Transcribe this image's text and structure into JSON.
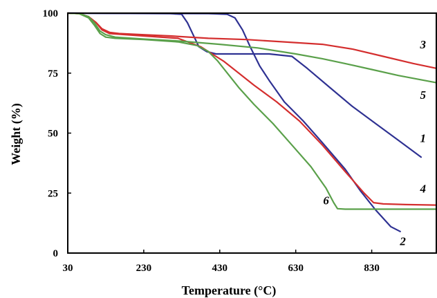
{
  "chart_data": {
    "type": "line",
    "title": "",
    "xlabel": "Temperature (°C)",
    "ylabel": "Weight (%)",
    "xlim": [
      30,
      1000
    ],
    "ylim": [
      0,
      100
    ],
    "x_ticks": [
      "30",
      "230",
      "430",
      "630",
      "830"
    ],
    "y_ticks": [
      "0",
      "25",
      "50",
      "75",
      "100"
    ],
    "grid": false,
    "legend": "none",
    "series": [
      {
        "name": "1",
        "color": "#2e3192",
        "points": [
          [
            30,
            100
          ],
          [
            300,
            99.8
          ],
          [
            330,
            99.5
          ],
          [
            345,
            96
          ],
          [
            360,
            91
          ],
          [
            375,
            86
          ],
          [
            395,
            84
          ],
          [
            420,
            83
          ],
          [
            560,
            83
          ],
          [
            620,
            82
          ],
          [
            660,
            77
          ],
          [
            720,
            69
          ],
          [
            780,
            61
          ],
          [
            840,
            54
          ],
          [
            900,
            47
          ],
          [
            960,
            40
          ]
        ]
      },
      {
        "name": "2",
        "color": "#2e3192",
        "points": [
          [
            30,
            100
          ],
          [
            400,
            99.8
          ],
          [
            450,
            99.5
          ],
          [
            470,
            98
          ],
          [
            490,
            93
          ],
          [
            510,
            86
          ],
          [
            535,
            78
          ],
          [
            560,
            72
          ],
          [
            600,
            63
          ],
          [
            650,
            55
          ],
          [
            700,
            46
          ],
          [
            760,
            35
          ],
          [
            800,
            26
          ],
          [
            840,
            18
          ],
          [
            880,
            11
          ],
          [
            905,
            9
          ]
        ]
      },
      {
        "name": "3",
        "color": "#d42e2e",
        "points": [
          [
            30,
            100
          ],
          [
            60,
            99.8
          ],
          [
            85,
            98.5
          ],
          [
            105,
            96
          ],
          [
            120,
            93.5
          ],
          [
            140,
            92
          ],
          [
            165,
            91.5
          ],
          [
            230,
            91
          ],
          [
            300,
            90.5
          ],
          [
            400,
            89.5
          ],
          [
            500,
            89
          ],
          [
            600,
            88
          ],
          [
            700,
            87
          ],
          [
            780,
            85
          ],
          [
            860,
            82
          ],
          [
            940,
            79
          ],
          [
            1000,
            77
          ]
        ]
      },
      {
        "name": "4",
        "color": "#d42e2e",
        "points": [
          [
            30,
            100
          ],
          [
            60,
            99.8
          ],
          [
            85,
            98.5
          ],
          [
            105,
            96
          ],
          [
            120,
            93
          ],
          [
            140,
            91.5
          ],
          [
            230,
            90.5
          ],
          [
            320,
            89.5
          ],
          [
            380,
            86
          ],
          [
            410,
            83
          ],
          [
            440,
            80
          ],
          [
            480,
            75
          ],
          [
            520,
            70
          ],
          [
            580,
            63
          ],
          [
            640,
            55
          ],
          [
            700,
            45
          ],
          [
            760,
            34
          ],
          [
            810,
            25
          ],
          [
            835,
            21
          ],
          [
            860,
            20.5
          ],
          [
            920,
            20.2
          ],
          [
            1000,
            20
          ]
        ]
      },
      {
        "name": "5",
        "color": "#5aa04a",
        "points": [
          [
            30,
            100
          ],
          [
            60,
            99.8
          ],
          [
            85,
            98.5
          ],
          [
            100,
            96
          ],
          [
            115,
            92.5
          ],
          [
            130,
            91
          ],
          [
            155,
            90
          ],
          [
            230,
            89.2
          ],
          [
            330,
            88.3
          ],
          [
            430,
            87
          ],
          [
            530,
            85.5
          ],
          [
            630,
            83
          ],
          [
            700,
            81
          ],
          [
            760,
            79
          ],
          [
            830,
            76.5
          ],
          [
            900,
            74
          ],
          [
            1000,
            71
          ]
        ]
      },
      {
        "name": "6",
        "color": "#5aa04a",
        "points": [
          [
            30,
            100
          ],
          [
            60,
            99.8
          ],
          [
            85,
            98
          ],
          [
            100,
            95
          ],
          [
            115,
            91.5
          ],
          [
            130,
            90
          ],
          [
            155,
            89.5
          ],
          [
            230,
            89
          ],
          [
            320,
            88
          ],
          [
            370,
            86.5
          ],
          [
            400,
            84
          ],
          [
            425,
            80
          ],
          [
            445,
            76
          ],
          [
            480,
            69
          ],
          [
            520,
            62
          ],
          [
            570,
            54
          ],
          [
            620,
            45
          ],
          [
            670,
            36
          ],
          [
            710,
            27
          ],
          [
            730,
            21
          ],
          [
            740,
            18.5
          ],
          [
            760,
            18.3
          ],
          [
            1000,
            18.3
          ]
        ]
      }
    ]
  }
}
